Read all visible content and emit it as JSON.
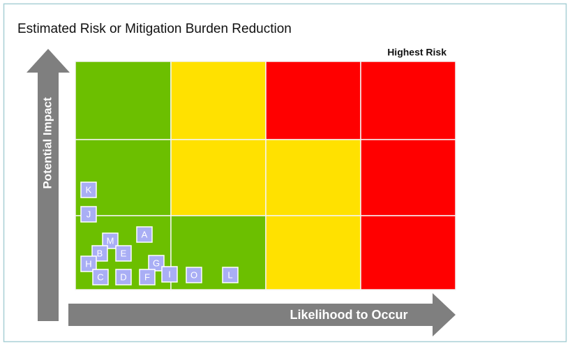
{
  "title": "Estimated Risk or Mitigation Burden Reduction",
  "corner_label": "Highest Risk",
  "y_axis_label": "Potential Impact",
  "x_axis_label": "Likelihood to Occur",
  "grid": {
    "rows": [
      [
        "#6cbf00",
        "#ffe100",
        "#ff0000",
        "#ff0000"
      ],
      [
        "#6cbf00",
        "#ffe100",
        "#ffe100",
        "#ff0000"
      ],
      [
        "#6cbf00",
        "#6cbf00",
        "#ffe100",
        "#ff0000"
      ]
    ]
  },
  "items": [
    "K",
    "J",
    "M",
    "A",
    "B",
    "E",
    "H",
    "G",
    "C",
    "D",
    "F",
    "I",
    "O",
    "L"
  ],
  "item_color": "#a9aef5"
}
